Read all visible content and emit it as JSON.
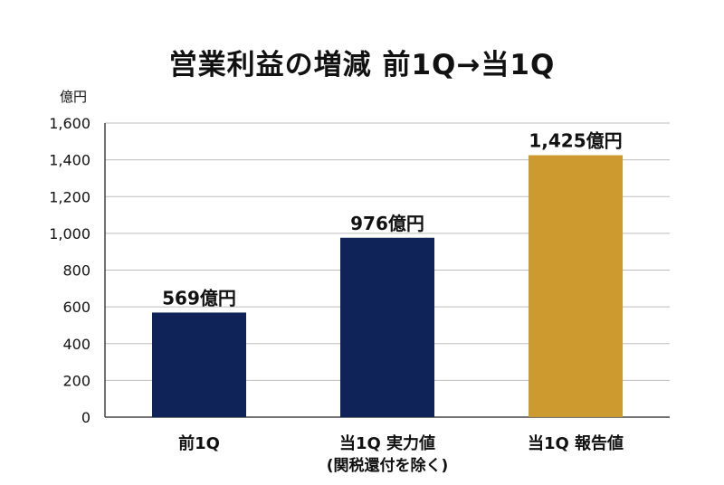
{
  "chart_data": {
    "type": "bar",
    "title": "営業利益の増減 前1Q→当1Q",
    "ylabel": "億円",
    "ylim": [
      0,
      1600
    ],
    "yticks": [
      0,
      200,
      400,
      600,
      800,
      "1,000",
      "1,200",
      "1,400",
      "1,600"
    ],
    "grid": true,
    "categories": [
      {
        "label": "前1Q",
        "sub": ""
      },
      {
        "label": "当1Q 実力値",
        "sub": "(関税還付を除く)"
      },
      {
        "label": "当1Q 報告値",
        "sub": ""
      }
    ],
    "values": [
      569,
      976,
      1425
    ],
    "data_labels": [
      "569億円",
      "976億円",
      "1,425億円"
    ],
    "colors": [
      "#0f2358",
      "#0f2358",
      "#cc9a2e"
    ]
  }
}
